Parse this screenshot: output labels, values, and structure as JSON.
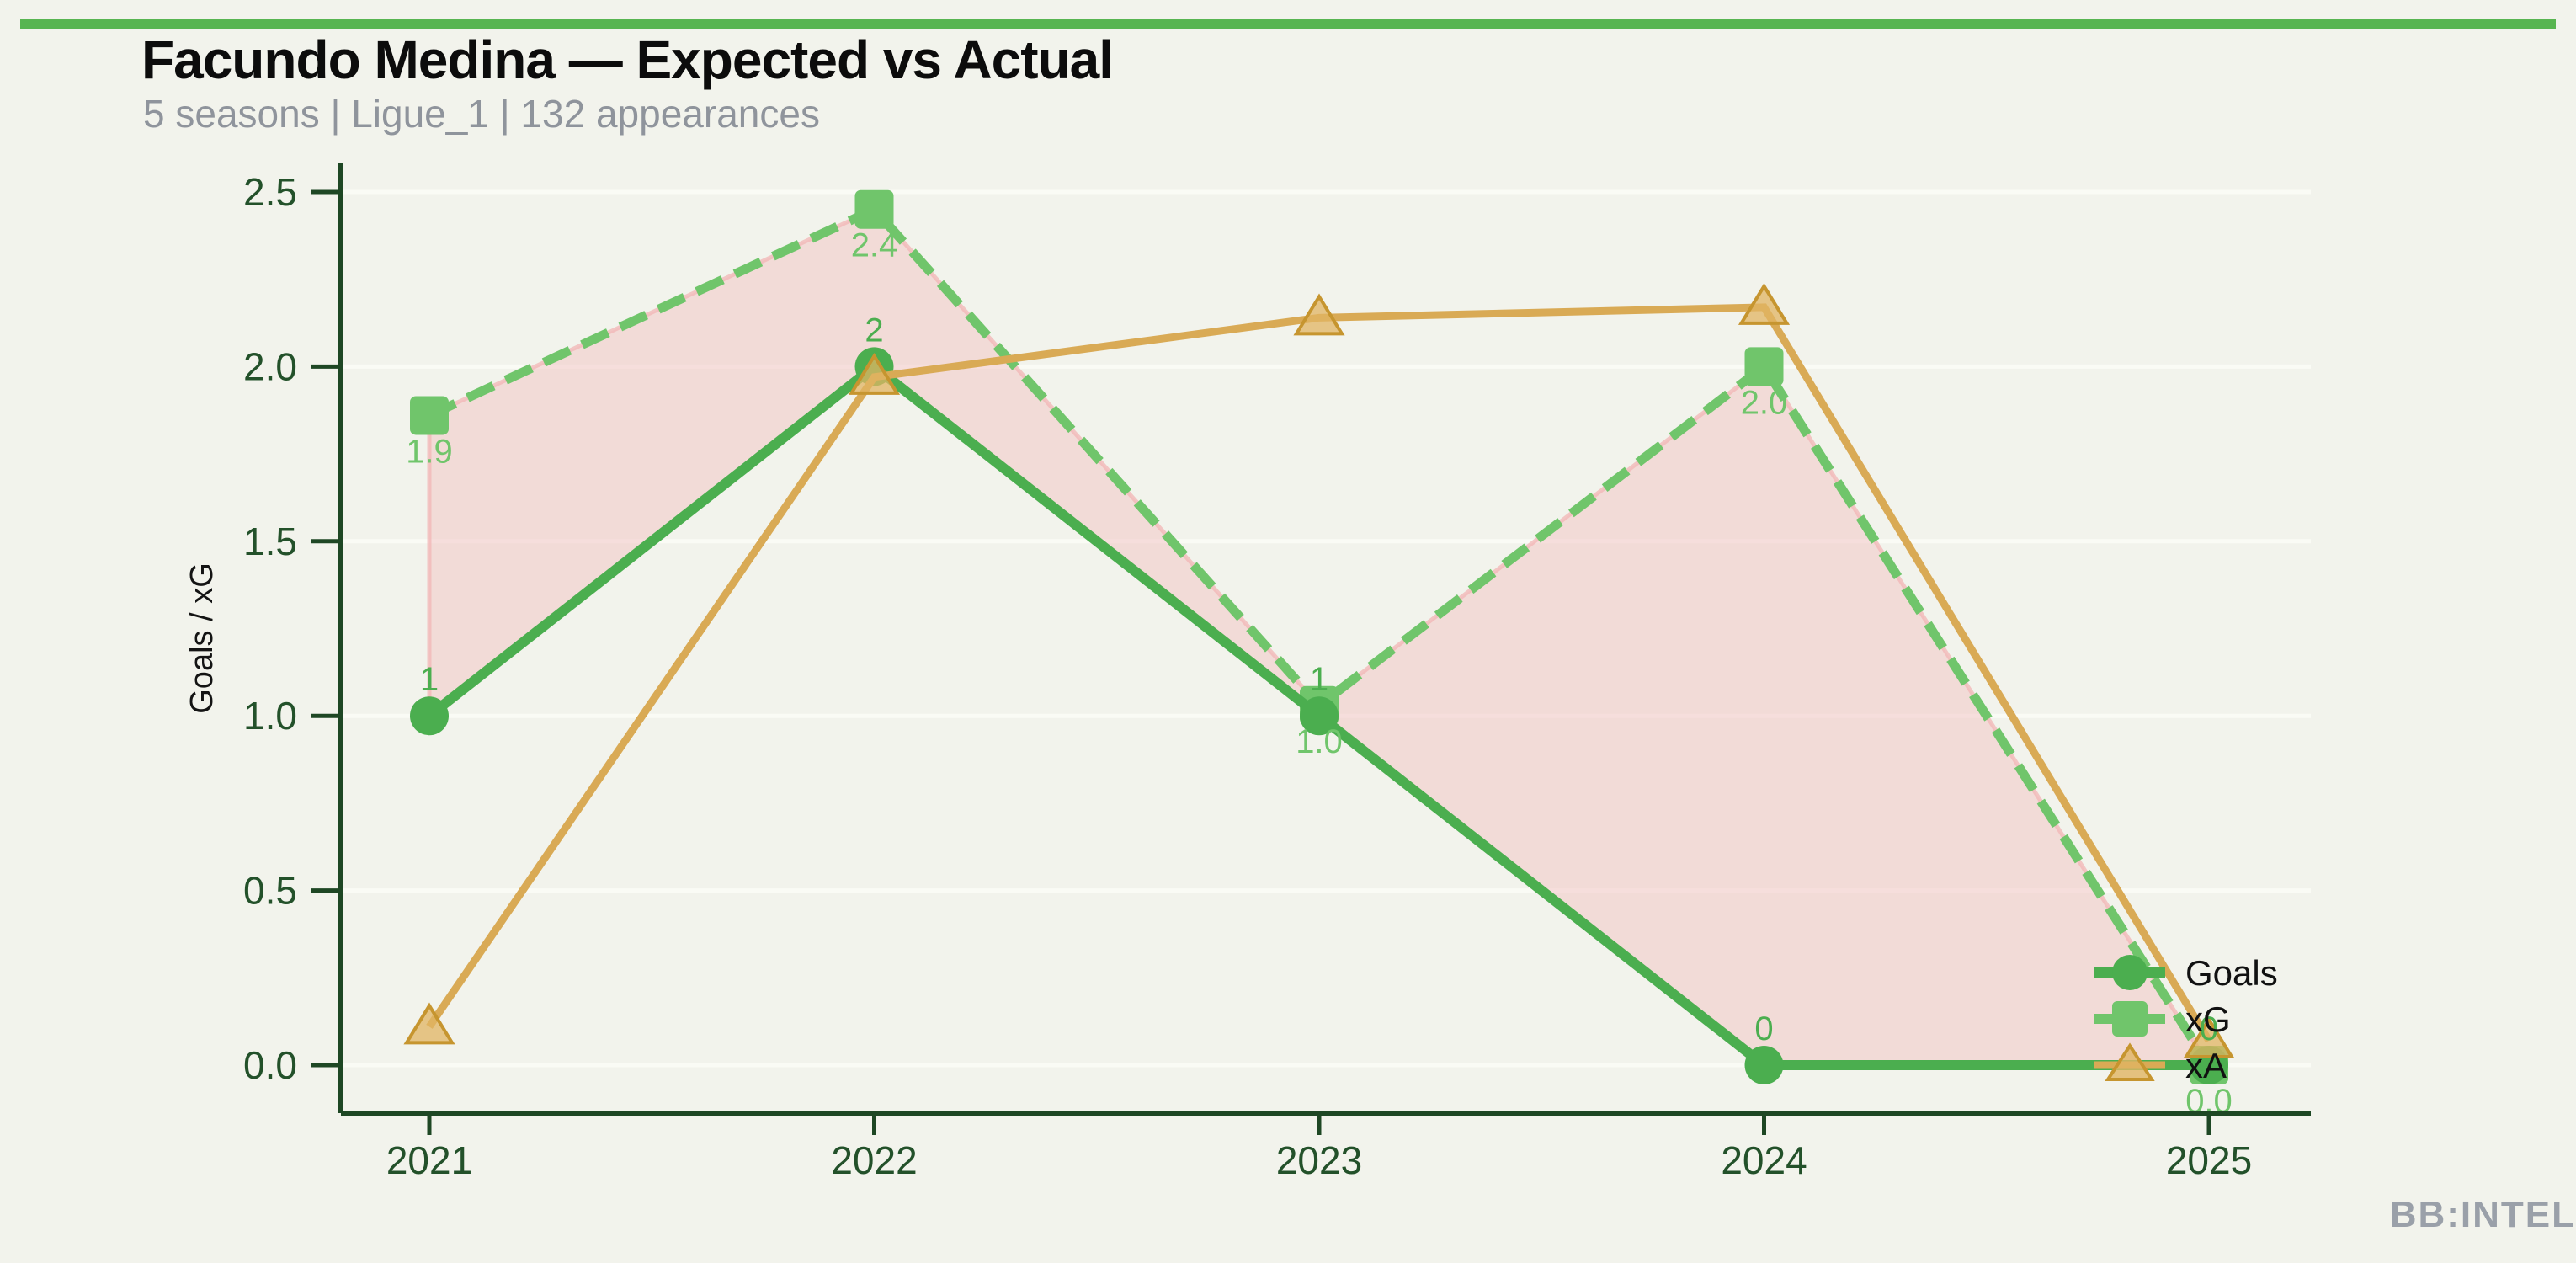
{
  "header": {
    "title": "Facundo Medina — Expected vs Actual",
    "subtitle": "5 seasons | Ligue_1 | 132 appearances"
  },
  "watermark": "BB:INTEL",
  "colors": {
    "accent_bar": "#58b551",
    "background": "#f2f3ec",
    "grid": "#fafbf5",
    "axis": "#1e4724",
    "tick_label": "#23512a",
    "title": "#0c0c0c",
    "subtitle": "#8f949c",
    "watermark": "#9aa0a9",
    "goals": "#4bae4f",
    "xg": "#70c56b",
    "xa": "#d9aa55",
    "xa_marker_fill": "#e0b463",
    "xa_marker_edge": "#c6952f",
    "fill_between": "#f3c6c6",
    "fill_edge": "#f1b6b6",
    "legend_text": "#111111"
  },
  "chart_data": {
    "type": "line",
    "title": "Facundo Medina — Expected vs Actual",
    "categories": [
      "2021",
      "2022",
      "2023",
      "2024",
      "2025"
    ],
    "xlabel": "",
    "ylabel": "Goals / xG",
    "ylim": [
      -0.15,
      2.6
    ],
    "yticks": [
      0.0,
      0.5,
      1.0,
      1.5,
      2.0,
      2.5
    ],
    "grid": "horizontal-major",
    "legend_position": "lower right",
    "series": [
      {
        "name": "Goals",
        "style": "solid",
        "marker": "circle",
        "color_key": "goals",
        "values": [
          1,
          2,
          1,
          0,
          0
        ],
        "labels": [
          "1",
          "2",
          "1",
          "0",
          "0"
        ]
      },
      {
        "name": "xG",
        "style": "dashed",
        "marker": "square",
        "color_key": "xg",
        "values": [
          1.86,
          2.45,
          1.03,
          2.0,
          0.0
        ],
        "labels": [
          "1.9",
          "2.4",
          "1.0",
          "2.0",
          "0.0"
        ]
      },
      {
        "name": "xA",
        "style": "solid",
        "marker": "triangle",
        "color_key": "xa",
        "values": [
          0.11,
          1.97,
          2.14,
          2.17,
          0.07
        ],
        "labels": []
      }
    ],
    "fill_between": {
      "series_a": "Goals",
      "series_b": "xG"
    },
    "legend": {
      "items": [
        "Goals",
        "xG",
        "xA"
      ]
    }
  }
}
